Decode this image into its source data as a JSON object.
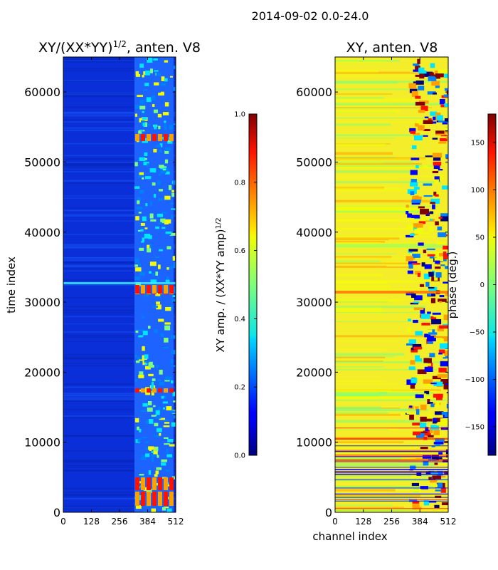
{
  "chart_data": [
    {
      "type": "heatmap",
      "suptitle": "2014-09-02 0.0-24.0",
      "title_main": "XY/(XX*YY)",
      "title_exp": "1/2",
      "title_tail": ", anten. V8",
      "xlabel": "",
      "ylabel": "time index",
      "xlim": [
        0,
        512
      ],
      "ylim": [
        0,
        65000
      ],
      "xticks": [
        0,
        128,
        256,
        384,
        512
      ],
      "xtick_labels": [
        "0",
        "128",
        "256",
        "384",
        "512"
      ],
      "yticks": [
        0,
        10000,
        20000,
        30000,
        40000,
        50000,
        60000
      ],
      "ytick_labels": [
        "0",
        "10000",
        "20000",
        "30000",
        "40000",
        "50000",
        "60000"
      ],
      "colormap": "jet",
      "colorbar": {
        "label_main": "XY amp. / (XX*YY amp)",
        "label_exp": "1/2",
        "range": [
          0.0,
          1.0
        ],
        "ticks": [
          0.0,
          0.2,
          0.4,
          0.6,
          0.8,
          1.0
        ],
        "tick_labels": [
          "0.0",
          "0.2",
          "0.4",
          "0.6",
          "0.8",
          "1.0"
        ]
      }
    },
    {
      "type": "heatmap",
      "title": "XY, anten. V8",
      "xlabel": "channel index",
      "ylabel": "",
      "xlim": [
        0,
        512
      ],
      "ylim": [
        0,
        65000
      ],
      "xticks": [
        0,
        128,
        256,
        384,
        512
      ],
      "xtick_labels": [
        "0",
        "128",
        "256",
        "384",
        "512"
      ],
      "yticks": [
        0,
        10000,
        20000,
        30000,
        40000,
        50000,
        60000
      ],
      "ytick_labels": [
        "0",
        "10000",
        "20000",
        "30000",
        "40000",
        "50000",
        "60000"
      ],
      "colormap": "jet",
      "colorbar": {
        "label": "phase (deg.)",
        "range": [
          -180,
          180
        ],
        "ticks": [
          -150,
          -100,
          -50,
          0,
          50,
          100,
          150
        ],
        "tick_labels": [
          "−150",
          "−100",
          "−50",
          "0",
          "50",
          "100",
          "150"
        ]
      }
    }
  ]
}
